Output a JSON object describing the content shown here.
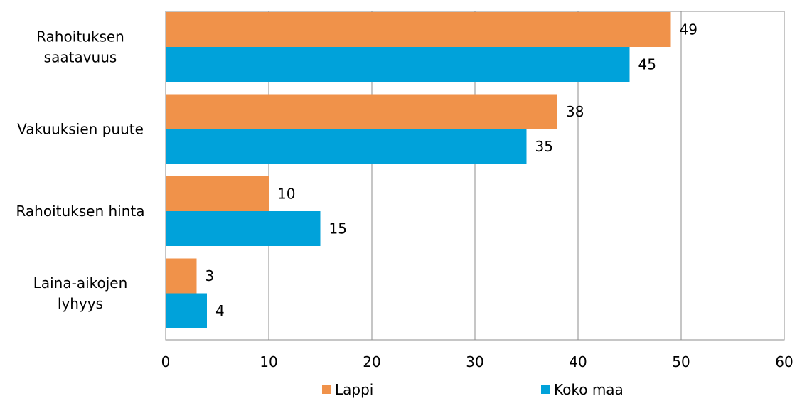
{
  "chart_data": {
    "type": "bar",
    "orientation": "horizontal",
    "categories": [
      [
        "Rahoituksen",
        "saatavuus"
      ],
      [
        "Vakuuksien puute"
      ],
      [
        "Rahoituksen hinta"
      ],
      [
        "Laina-aikojen",
        "lyhyys"
      ]
    ],
    "series": [
      {
        "name": "Lappi",
        "color": "#F0924A",
        "values": [
          49,
          38,
          10,
          3
        ]
      },
      {
        "name": "Koko maa",
        "color": "#00A2DA",
        "values": [
          45,
          35,
          15,
          4
        ]
      }
    ],
    "xlim": [
      0,
      60
    ],
    "ticks": [
      "0",
      "10",
      "20",
      "30",
      "40",
      "50",
      "60"
    ],
    "tick_values": [
      0,
      10,
      20,
      30,
      40,
      50,
      60
    ],
    "grid": true,
    "legend_position": "bottom"
  }
}
